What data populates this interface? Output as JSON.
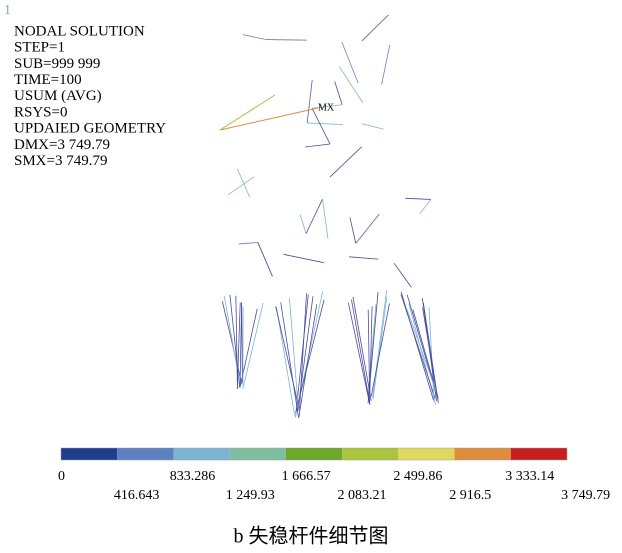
{
  "header": {
    "number": "1",
    "info_lines": [
      "NODAL SOLUTION",
      "STEP=1",
      "SUB=999 999",
      "TIME=100",
      "USUM      (AVG)",
      "RSYS=0",
      "UPDAIED GEOMETRY",
      "DMX=3 749.79",
      "SMX=3 749.79"
    ]
  },
  "max_marker": "MX",
  "colorbar": {
    "colors": [
      "#1f3e8e",
      "#5c80c1",
      "#7bb5d3",
      "#80bea2",
      "#6fa62c",
      "#a9c53e",
      "#dfd85e",
      "#df8d3d",
      "#c71f20"
    ],
    "labels": [
      "0",
      "416.643",
      "833.286",
      "1 249.93",
      "1 666.57",
      "2 083.21",
      "2 499.86",
      "2 916.5",
      "3 333.14",
      "3 749.79"
    ]
  },
  "caption": "b 失稳杆件细节图"
}
